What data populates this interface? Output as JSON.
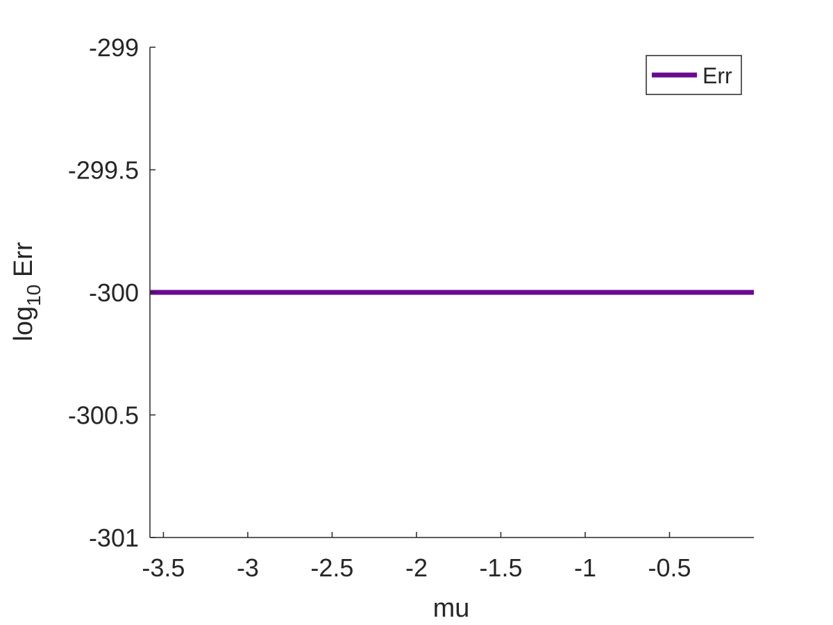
{
  "chart_data": {
    "type": "line",
    "xlabel": "mu",
    "ylabel_main": "log",
    "ylabel_sub": "10",
    "ylabel_rest": " Err",
    "xlim": [
      -3.58,
      0.0
    ],
    "ylim": [
      -301,
      -299
    ],
    "xticks": [
      -3.5,
      -3,
      -2.5,
      -2,
      -1.5,
      -1,
      -0.5
    ],
    "xtick_labels": [
      "-3.5",
      "-3",
      "-2.5",
      "-2",
      "-1.5",
      "-1",
      "-0.5"
    ],
    "yticks": [
      -301,
      -300.5,
      -300,
      -299.5,
      -299
    ],
    "ytick_labels": [
      "-301",
      "-300.5",
      "-300",
      "-299.5",
      "-299"
    ],
    "series": [
      {
        "name": "Err",
        "color": "#6a0a8f",
        "x": [
          -3.58,
          0.0
        ],
        "y": [
          -300,
          -300
        ]
      }
    ],
    "legend": {
      "placement": "top-right",
      "entries": [
        "Err"
      ]
    },
    "grid": false
  }
}
